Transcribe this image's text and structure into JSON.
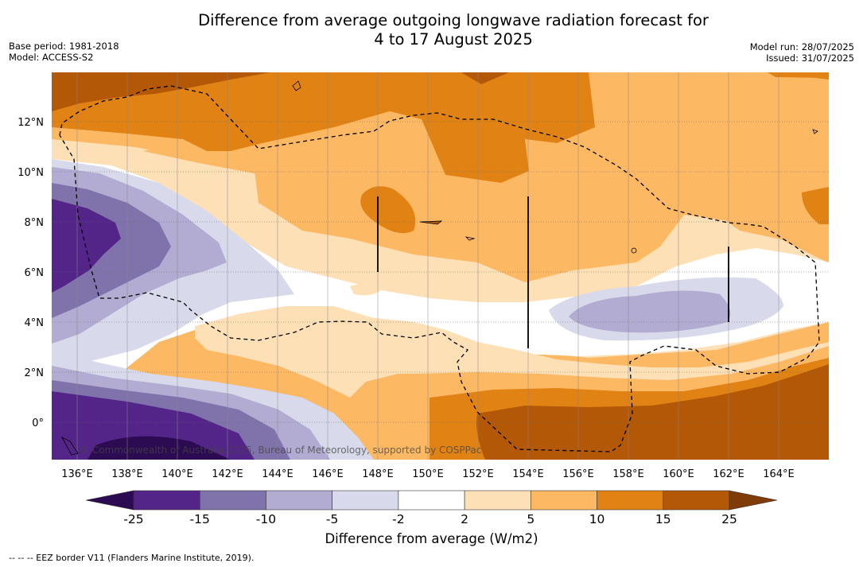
{
  "title_line1": "Difference from average outgoing longwave radiation forecast for",
  "title_line2": "4 to 17 August 2025",
  "meta_left": [
    "Base period: 1981-2018",
    "Model: ACCESS-S2"
  ],
  "meta_right": [
    "Model run: 28/07/2025",
    "Issued: 31/07/2025"
  ],
  "lat_ticks": [
    "12°N",
    "10°N",
    "8°N",
    "6°N",
    "4°N",
    "2°N",
    "0°"
  ],
  "lon_ticks": [
    "136°E",
    "138°E",
    "140°E",
    "142°E",
    "144°E",
    "146°E",
    "148°E",
    "150°E",
    "152°E",
    "154°E",
    "156°E",
    "158°E",
    "160°E",
    "162°E",
    "164°E"
  ],
  "watermark": "© Commonwealth of Australia 2025, Bureau of Meteorology, supported by COSPPac",
  "colorbar": {
    "label": "Difference from average (W/m2)",
    "tick_labels": [
      "-25",
      "-15",
      "-10",
      "-5",
      "-2",
      "2",
      "5",
      "10",
      "15",
      "25"
    ],
    "colors": [
      "#2d0b52",
      "#542588",
      "#8073ac",
      "#b2abd2",
      "#d8daeb",
      "#ffffff",
      "#fee0b6",
      "#fdb863",
      "#e08214",
      "#b35806",
      "#7f3b08"
    ]
  },
  "footnote": "-- -- -- EEZ border V11 (Flanders Marine Institute, 2019)."
}
